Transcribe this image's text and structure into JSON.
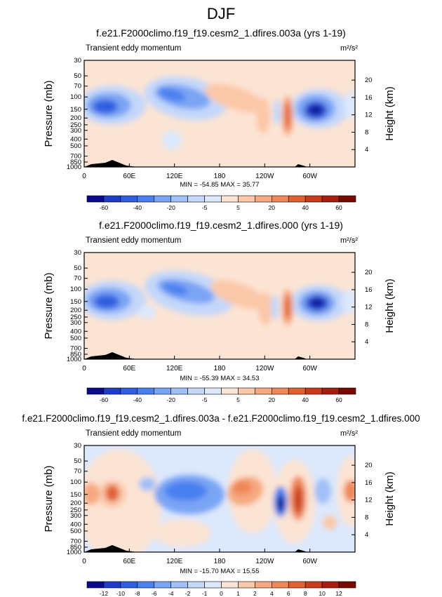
{
  "page_title": "DJF",
  "chart_data": [
    {
      "type": "heatmap",
      "title": "f.e21.F2000climo.f19_f19.cesm2_1.dfires.003a (yrs 1-19)",
      "subtitle": "Transient eddy momentum",
      "units": "m²/s²",
      "ylabel": "Pressure (mb)",
      "ylabel_right": "Height (km)",
      "yticks": [
        "30",
        "50",
        "70",
        "100",
        "150",
        "200",
        "250",
        "300",
        "400",
        "500",
        "700",
        "850",
        "1000"
      ],
      "yticks_right": [
        "20",
        "16",
        "12",
        "8",
        "4"
      ],
      "xticks": [
        "0",
        "60E",
        "120E",
        "180",
        "120W",
        "60W"
      ],
      "stats": "MIN = -54.85  MAX = 35.77",
      "min": -54.85,
      "max": 35.77,
      "colorbar": {
        "labels": [
          "-60",
          "-40",
          "-20",
          "-5",
          "5",
          "20",
          "40",
          "60"
        ],
        "colors": [
          "#0a0a8c",
          "#1e3cc8",
          "#2f5fe0",
          "#4a80f0",
          "#7aa4f4",
          "#a0c0f8",
          "#c4d8fa",
          "#dce8fc",
          "#fce4d4",
          "#fbc8a8",
          "#f6a880",
          "#ef8858",
          "#e06030",
          "#c83c1c",
          "#a81e0e",
          "#780800"
        ]
      }
    },
    {
      "type": "heatmap",
      "title": "f.e21.F2000climo.f19_f19.cesm2_1.dfires.000 (yrs 1-19)",
      "subtitle": "Transient eddy momentum",
      "units": "m²/s²",
      "ylabel": "Pressure (mb)",
      "ylabel_right": "Height (km)",
      "yticks": [
        "30",
        "50",
        "70",
        "100",
        "150",
        "200",
        "250",
        "300",
        "400",
        "500",
        "700",
        "850",
        "1000"
      ],
      "yticks_right": [
        "20",
        "16",
        "12",
        "8",
        "4"
      ],
      "xticks": [
        "0",
        "60E",
        "120E",
        "180",
        "120W",
        "60W"
      ],
      "stats": "MIN = -55.39  MAX = 34.53",
      "min": -55.39,
      "max": 34.53,
      "colorbar": {
        "labels": [
          "-60",
          "-40",
          "-20",
          "-5",
          "5",
          "20",
          "40",
          "60"
        ],
        "colors": [
          "#0a0a8c",
          "#1e3cc8",
          "#2f5fe0",
          "#4a80f0",
          "#7aa4f4",
          "#a0c0f8",
          "#c4d8fa",
          "#dce8fc",
          "#fce4d4",
          "#fbc8a8",
          "#f6a880",
          "#ef8858",
          "#e06030",
          "#c83c1c",
          "#a81e0e",
          "#780800"
        ]
      }
    },
    {
      "type": "heatmap",
      "title": "f.e21.F2000climo.f19_f19.cesm2_1.dfires.003a - f.e21.F2000climo.f19_f19.cesm2_1.dfires.000",
      "subtitle": "Transient eddy momentum",
      "units": "m²/s²",
      "ylabel": "Pressure (mb)",
      "ylabel_right": "Height (km)",
      "yticks": [
        "30",
        "50",
        "70",
        "100",
        "150",
        "200",
        "250",
        "300",
        "400",
        "500",
        "700",
        "850",
        "1000"
      ],
      "yticks_right": [
        "20",
        "16",
        "12",
        "8",
        "4"
      ],
      "xticks": [
        "0",
        "60E",
        "120E",
        "180",
        "120W",
        "60W"
      ],
      "stats": "MIN = -15.70  MAX = 15.55",
      "min": -15.7,
      "max": 15.55,
      "colorbar": {
        "labels": [
          "-12",
          "-10",
          "-8",
          "-6",
          "-4",
          "-2",
          "-1",
          "0",
          "1",
          "2",
          "4",
          "6",
          "8",
          "10",
          "12"
        ],
        "colors": [
          "#0a0a8c",
          "#1e3cc8",
          "#2f5fe0",
          "#4a80f0",
          "#7aa4f4",
          "#a0c0f8",
          "#c4d8fa",
          "#dce8fc",
          "#fce4d4",
          "#fbc8a8",
          "#f6a880",
          "#ef8858",
          "#e06030",
          "#c83c1c",
          "#a81e0e",
          "#780800"
        ]
      }
    }
  ]
}
